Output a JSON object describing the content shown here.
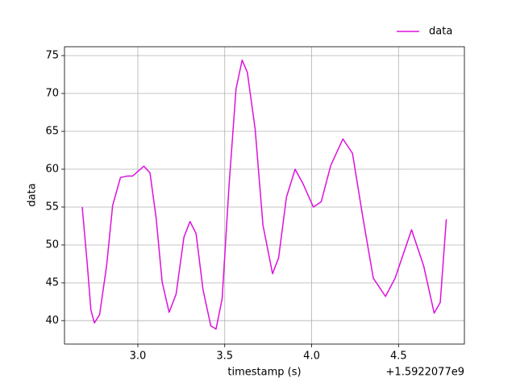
{
  "chart_data": {
    "type": "line",
    "xlabel": "timestamp (s)",
    "ylabel": "data",
    "x_offset_label": "+1.5922077e9",
    "x": [
      2.68,
      2.71,
      2.73,
      2.75,
      2.78,
      2.82,
      2.855,
      2.9,
      2.94,
      2.97,
      3.005,
      3.035,
      3.07,
      3.105,
      3.14,
      3.18,
      3.22,
      3.265,
      3.3,
      3.335,
      3.375,
      3.42,
      3.45,
      3.485,
      3.525,
      3.565,
      3.6,
      3.63,
      3.675,
      3.72,
      3.775,
      3.81,
      3.855,
      3.905,
      3.95,
      4.01,
      4.055,
      4.11,
      4.18,
      4.235,
      4.295,
      4.355,
      4.425,
      4.48,
      4.575,
      4.645,
      4.705,
      4.74,
      4.775
    ],
    "series": [
      {
        "name": "data",
        "color": "#dd10dd",
        "values": [
          55,
          47.2,
          41.4,
          39.7,
          40.8,
          47.2,
          55.2,
          58.9,
          59.1,
          59.1,
          59.8,
          60.4,
          59.5,
          53.6,
          45.1,
          41.1,
          43.5,
          51.0,
          53.1,
          51.5,
          44.1,
          39.3,
          38.9,
          42.9,
          57.9,
          70.6,
          74.4,
          72.8,
          65.3,
          52.6,
          46.2,
          48.3,
          56.3,
          60.0,
          58.1,
          55.0,
          55.7,
          60.5,
          64.0,
          62.1,
          53.6,
          45.6,
          43.2,
          45.6,
          52.0,
          47.2,
          41.0,
          42.4,
          53.4
        ]
      }
    ],
    "xlim": [
      2.578,
      4.879
    ],
    "ylim": [
      36.91,
      76.17
    ],
    "xticks": [
      {
        "value": 3,
        "label": "3.0"
      },
      {
        "value": 3.5,
        "label": "3.5"
      },
      {
        "value": 4,
        "label": "4.0"
      },
      {
        "value": 4.5,
        "label": "4.5"
      }
    ],
    "yticks": [
      40,
      45,
      50,
      55,
      60,
      65,
      70,
      75
    ],
    "grid": true,
    "legend": "upper right"
  }
}
